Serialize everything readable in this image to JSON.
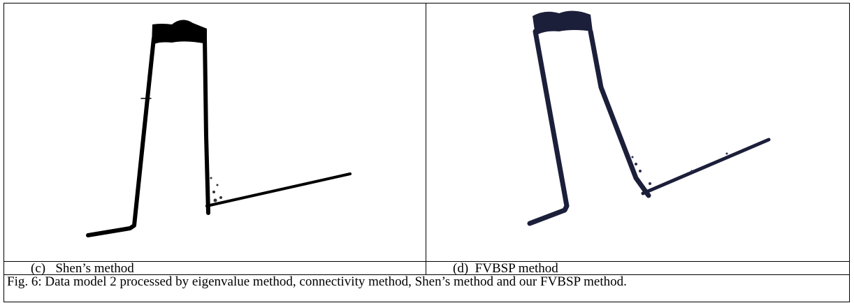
{
  "subfigures": [
    {
      "label": "(c)",
      "name": "Shen’s method"
    },
    {
      "label": "(d)",
      "name": "FVBSP method"
    }
  ],
  "caption": "Fig. 6: Data model 2 processed by eigenvalue method, connectivity method, Shen’s method and our FVBSP method."
}
